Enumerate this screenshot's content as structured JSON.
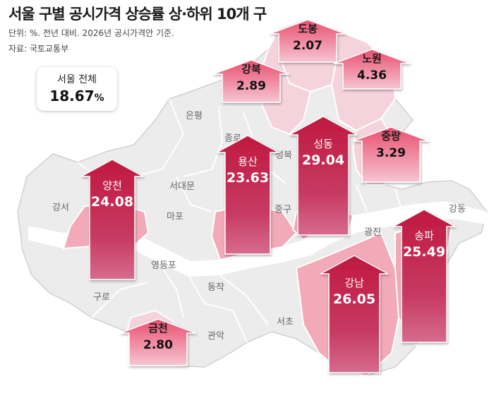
{
  "title": "서울 구별 공시가격 상승률 상·하위 10개 구",
  "note": "단위: %. 전년 대비. 2026년 공시가격안 기준.",
  "source": "자료: 국토교통부",
  "total": {
    "label": "서울 전체",
    "value": "18.67",
    "unit": "%"
  },
  "colors": {
    "strong": "#c3244f",
    "light_fill": "#f2a9b8",
    "pale_fill": "#f7dbe2",
    "base_fill": "#ededed",
    "border": "#ffffff"
  },
  "districts": [
    {
      "name": "도봉",
      "rate": "2.07",
      "highlight": "pale"
    },
    {
      "name": "노원",
      "rate": "4.36",
      "highlight": "pale"
    },
    {
      "name": "강북",
      "rate": "2.89",
      "highlight": "pale"
    },
    {
      "name": "중랑",
      "rate": "3.29",
      "highlight": "pale"
    },
    {
      "name": "금천",
      "rate": "2.80",
      "highlight": "pale"
    },
    {
      "name": "성동",
      "rate": "29.04",
      "highlight": "strong"
    },
    {
      "name": "용산",
      "rate": "23.63",
      "highlight": "strong"
    },
    {
      "name": "양천",
      "rate": "24.08",
      "highlight": "strong"
    },
    {
      "name": "송파",
      "rate": "25.49",
      "highlight": "strong"
    },
    {
      "name": "강남",
      "rate": "26.05",
      "highlight": "strong"
    }
  ],
  "labels": [
    "은평",
    "종로",
    "성북",
    "서대문",
    "마포",
    "강서",
    "중구",
    "광진",
    "강동",
    "영등포",
    "구로",
    "동작",
    "관악",
    "서초"
  ]
}
